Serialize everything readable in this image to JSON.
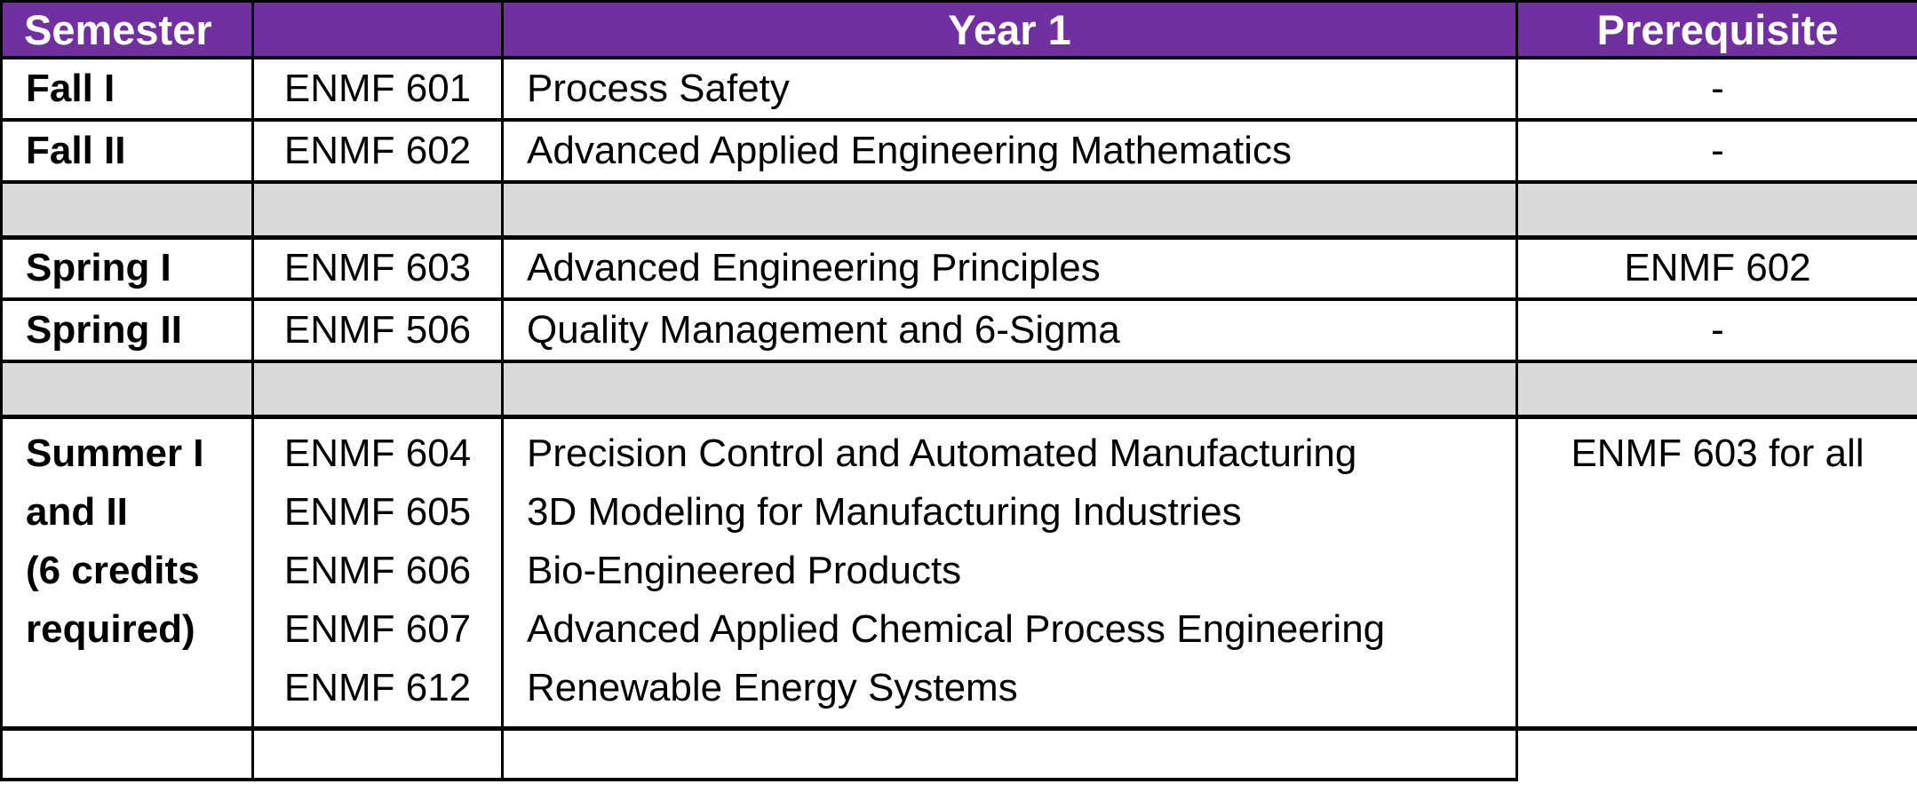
{
  "header": {
    "col1": "Semester",
    "col2": "",
    "col3": "Year 1",
    "col4": "Prerequisite"
  },
  "rows": [
    {
      "type": "course",
      "semester": "Fall I",
      "code": "ENMF 601",
      "title": "Process Safety",
      "prereq": "-"
    },
    {
      "type": "course",
      "semester": "Fall II",
      "code": "ENMF 602",
      "title": "Advanced Applied Engineering Mathematics",
      "prereq": "-"
    },
    {
      "type": "spacer"
    },
    {
      "type": "course",
      "semester": "Spring I",
      "code": "ENMF 603",
      "title": "Advanced Engineering Principles",
      "prereq": "ENMF 602"
    },
    {
      "type": "course",
      "semester": "Spring II",
      "code": "ENMF 506",
      "title": "Quality Management and 6-Sigma",
      "prereq": "-"
    },
    {
      "type": "spacer"
    },
    {
      "type": "summer",
      "semester_lines": [
        "Summer I",
        "and II",
        "(6 credits",
        "required)"
      ],
      "codes": [
        "ENMF 604",
        "ENMF 605",
        "ENMF 606",
        "ENMF 607",
        "ENMF 612"
      ],
      "titles": [
        "Precision Control and Automated Manufacturing",
        "3D Modeling for Manufacturing Industries",
        "Bio-Engineered Products",
        "Advanced Applied Chemical Process Engineering",
        "Renewable Energy Systems"
      ],
      "prereq": "ENMF 603 for all"
    },
    {
      "type": "empty"
    }
  ],
  "colors": {
    "header_bg": "#7030A0",
    "header_text": "#FFFFFF",
    "spacer_bg": "#D9D9D9",
    "row_bg": "#FFFFFF",
    "border": "#000000",
    "text": "#000000"
  }
}
